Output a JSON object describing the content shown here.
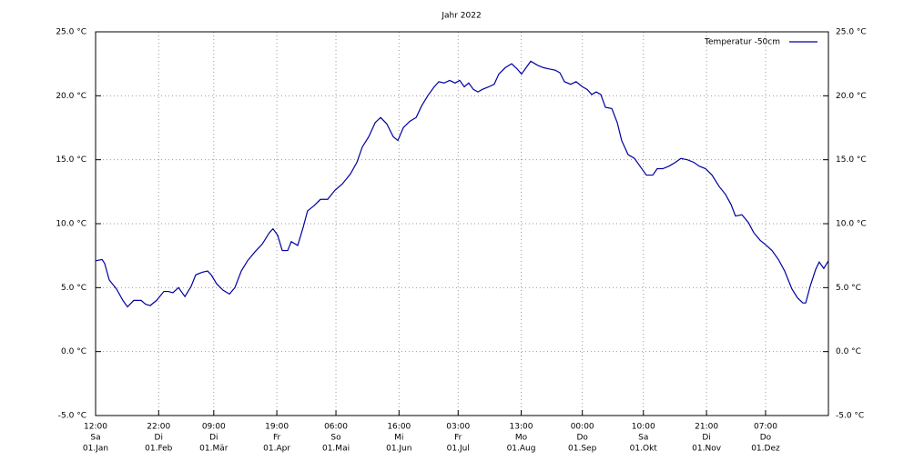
{
  "chart_data": {
    "type": "line",
    "title": "Jahr 2022",
    "x": [
      0.5,
      3.7,
      5.0,
      7.3,
      10.9,
      14.1,
      16.4,
      19.5,
      23.2,
      25.4,
      27.7,
      30.9,
      34.5,
      36.8,
      39.0,
      41.8,
      45.0,
      48.1,
      50.4,
      53.6,
      56.3,
      58.1,
      60.8,
      64.0,
      67.2,
      69.9,
      73.1,
      76.2,
      79.9,
      83.5,
      87.1,
      88.9,
      91.2,
      93.5,
      96.2,
      98.0,
      101.2,
      103.9,
      106.1,
      109.3,
      112.5,
      116.1,
      119.7,
      123.4,
      127.5,
      130.7,
      133.4,
      136.6,
      139.8,
      142.5,
      145.6,
      148.8,
      151.1,
      153.8,
      157.0,
      160.2,
      162.9,
      166.0,
      169.2,
      171.5,
      174.2,
      176.9,
      179.6,
      181.9,
      184.2,
      186.4,
      188.7,
      191.0,
      193.2,
      196.4,
      199.1,
      201.4,
      204.6,
      207.8,
      210.5,
      212.7,
      215.0,
      217.3,
      220.5,
      223.6,
      226.4,
      229.5,
      231.8,
      234.1,
      237.2,
      239.9,
      243.1,
      245.4,
      247.7,
      249.9,
      252.2,
      254.5,
      257.7,
      260.4,
      262.6,
      265.8,
      269.0,
      271.7,
      274.9,
      278.1,
      280.3,
      283.1,
      286.2,
      289.4,
      292.1,
      295.3,
      298.5,
      301.2,
      304.4,
      307.6,
      311.2,
      314.3,
      317.1,
      319.3,
      322.5,
      325.7,
      328.4,
      331.6,
      334.7,
      337.5,
      340.7,
      343.8,
      347.4,
      350.2,
      352.9,
      354.3,
      356.5,
      359.2,
      361.0,
      363.3,
      365.6
    ],
    "series": [
      {
        "name": "Temperatur -50cm",
        "color": "#0000a0",
        "values": [
          7.1,
          7.2,
          6.9,
          5.6,
          4.9,
          4.0,
          3.5,
          4.0,
          4.0,
          3.7,
          3.6,
          4.0,
          4.7,
          4.7,
          4.6,
          5.0,
          4.3,
          5.1,
          6.0,
          6.2,
          6.3,
          6.0,
          5.3,
          4.8,
          4.5,
          5.0,
          6.3,
          7.1,
          7.8,
          8.4,
          9.3,
          9.6,
          9.1,
          7.9,
          7.9,
          8.6,
          8.3,
          9.7,
          11.0,
          11.4,
          11.9,
          11.9,
          12.6,
          13.1,
          13.9,
          14.8,
          16.0,
          16.8,
          17.9,
          18.3,
          17.8,
          16.8,
          16.5,
          17.5,
          18.0,
          18.3,
          19.2,
          20.0,
          20.7,
          21.1,
          21.0,
          21.2,
          21.0,
          21.2,
          20.7,
          21.0,
          20.5,
          20.3,
          20.5,
          20.7,
          20.9,
          21.7,
          22.2,
          22.5,
          22.1,
          21.7,
          22.2,
          22.7,
          22.4,
          22.2,
          22.1,
          22.0,
          21.8,
          21.1,
          20.9,
          21.1,
          20.7,
          20.5,
          20.1,
          20.3,
          20.1,
          19.1,
          19.0,
          17.9,
          16.5,
          15.4,
          15.1,
          14.5,
          13.8,
          13.8,
          14.3,
          14.3,
          14.5,
          14.8,
          15.1,
          15.0,
          14.8,
          14.5,
          14.3,
          13.8,
          12.9,
          12.3,
          11.5,
          10.6,
          10.7,
          10.1,
          9.3,
          8.7,
          8.3,
          7.9,
          7.2,
          6.3,
          4.9,
          4.2,
          3.8,
          3.8,
          5.1,
          6.4,
          7.0,
          6.5,
          7.1
        ]
      }
    ],
    "xlim": [
      0.5,
      365.6
    ],
    "xticks": [
      {
        "value": 0.5,
        "label": [
          "12:00",
          "Sa",
          "01.Jan"
        ]
      },
      {
        "value": 31.917,
        "label": [
          "22:00",
          "Di",
          "01.Feb"
        ]
      },
      {
        "value": 59.375,
        "label": [
          "09:00",
          "Di",
          "01.Mär"
        ]
      },
      {
        "value": 90.792,
        "label": [
          "19:00",
          "Fr",
          "01.Apr"
        ]
      },
      {
        "value": 120.25,
        "label": [
          "06:00",
          "So",
          "01.Mai"
        ]
      },
      {
        "value": 151.667,
        "label": [
          "16:00",
          "Mi",
          "01.Jun"
        ]
      },
      {
        "value": 181.125,
        "label": [
          "03:00",
          "Fr",
          "01.Jul"
        ]
      },
      {
        "value": 212.542,
        "label": [
          "13:00",
          "Mo",
          "01.Aug"
        ]
      },
      {
        "value": 243.0,
        "label": [
          "00:00",
          "Do",
          "01.Sep"
        ]
      },
      {
        "value": 273.417,
        "label": [
          "10:00",
          "Sa",
          "01.Okt"
        ]
      },
      {
        "value": 304.875,
        "label": [
          "21:00",
          "Di",
          "01.Nov"
        ]
      },
      {
        "value": 334.292,
        "label": [
          "07:00",
          "Do",
          "01.Dez"
        ]
      }
    ],
    "ylim": [
      -5,
      25
    ],
    "yticks": [
      {
        "value": -5,
        "label": "-5.0 °C"
      },
      {
        "value": 0,
        "label": "0.0 °C"
      },
      {
        "value": 5,
        "label": "5.0 °C"
      },
      {
        "value": 10,
        "label": "10.0 °C"
      },
      {
        "value": 15,
        "label": "15.0 °C"
      },
      {
        "value": 20,
        "label": "20.0 °C"
      },
      {
        "value": 25,
        "label": "25.0 °C"
      }
    ],
    "y2lim": [
      -5,
      25
    ],
    "y2ticks": [
      {
        "value": -5,
        "label": "-5.0 °C"
      },
      {
        "value": 0,
        "label": "0.0 °C"
      },
      {
        "value": 5,
        "label": "5.0 °C"
      },
      {
        "value": 10,
        "label": "10.0 °C"
      },
      {
        "value": 15,
        "label": "15.0 °C"
      },
      {
        "value": 20,
        "label": "20.0 °C"
      },
      {
        "value": 25,
        "label": "25.0 °C"
      }
    ],
    "grid": true,
    "legend": "top-right"
  }
}
